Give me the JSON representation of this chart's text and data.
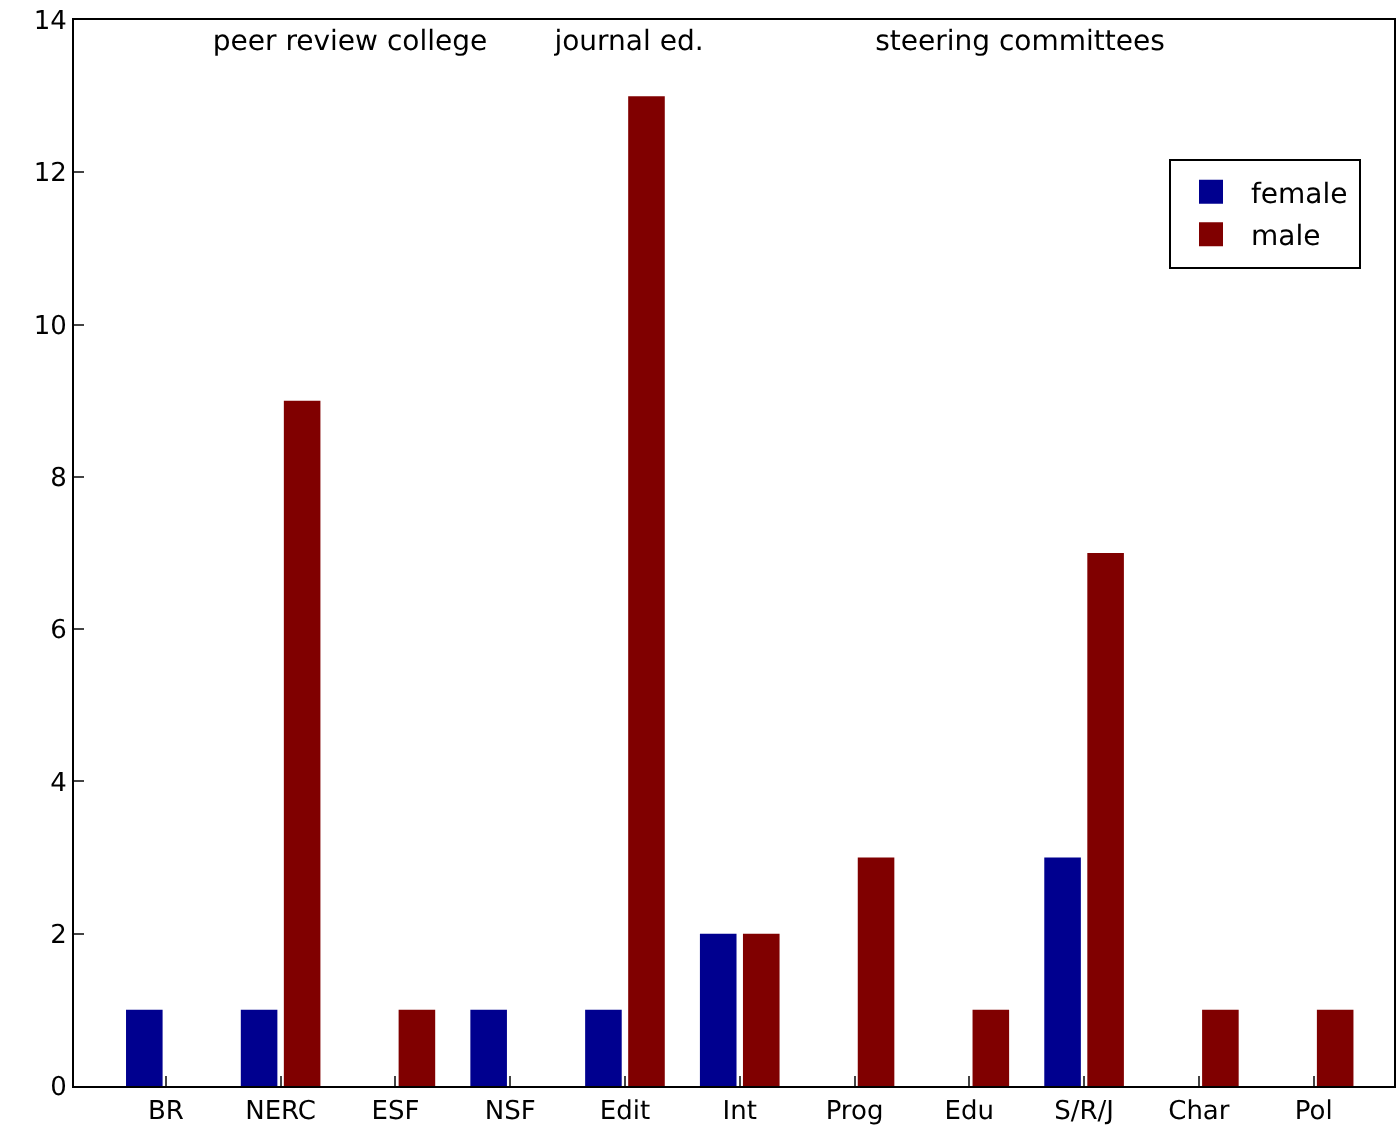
{
  "chart_data": {
    "type": "bar",
    "categories": [
      "BR",
      "NERC",
      "ESF",
      "NSF",
      "Edit",
      "Int",
      "Prog",
      "Edu",
      "S/R/J",
      "Char",
      "Pol"
    ],
    "series": [
      {
        "name": "female",
        "color": "#00008f",
        "values": [
          1,
          1,
          0,
          1,
          1,
          2,
          0,
          0,
          3,
          0,
          0
        ]
      },
      {
        "name": "male",
        "color": "#800000",
        "values": [
          0,
          9,
          1,
          0,
          13,
          2,
          3,
          1,
          7,
          1,
          1
        ]
      }
    ],
    "ylim": [
      0,
      14
    ],
    "yticks": [
      0,
      2,
      4,
      6,
      8,
      10,
      12,
      14
    ],
    "annotations": [
      "peer review college",
      "journal ed.",
      "steering committees"
    ],
    "legend": "top right"
  }
}
